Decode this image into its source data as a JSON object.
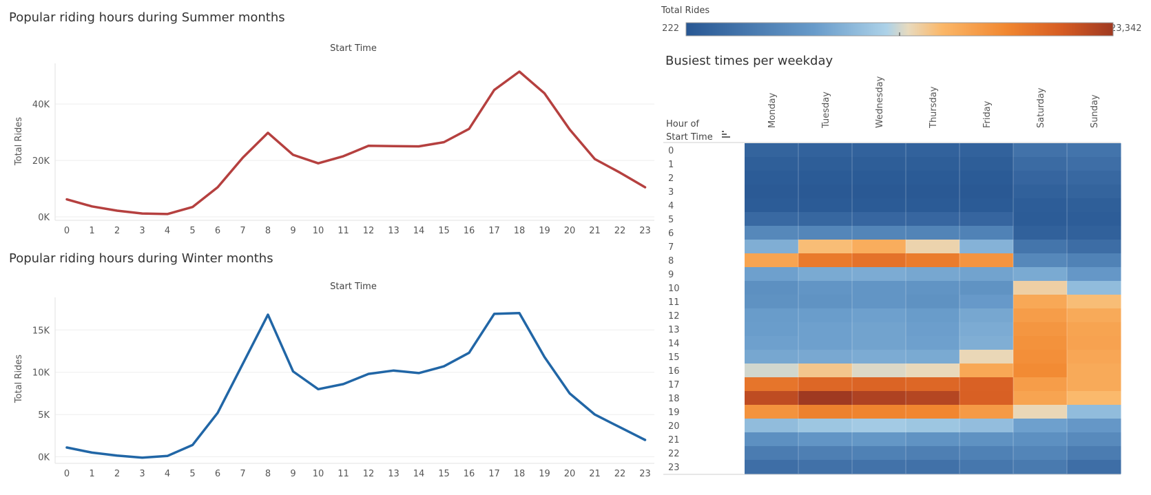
{
  "summer": {
    "title": "Popular riding hours during Summer months",
    "axis_title": "Start Time",
    "ylabel": "Total Rides",
    "yticks": [
      {
        "v": 0,
        "label": "0K"
      },
      {
        "v": 20000,
        "label": "20K"
      },
      {
        "v": 40000,
        "label": "40K"
      }
    ],
    "color": "#b5403f"
  },
  "winter": {
    "title": "Popular riding hours during Winter months",
    "axis_title": "Start Time",
    "ylabel": "Total Rides",
    "yticks": [
      {
        "v": 0,
        "label": "0K"
      },
      {
        "v": 5000,
        "label": "5K"
      },
      {
        "v": 10000,
        "label": "10K"
      },
      {
        "v": 15000,
        "label": "15K"
      }
    ],
    "color": "#2166a6"
  },
  "legend": {
    "title": "Total Rides",
    "min_label": "222",
    "max_label": "23,342"
  },
  "heatmap": {
    "title": "Busiest times per weekday",
    "row_header_line1": "Hour of",
    "row_header_line2": "Start Time"
  },
  "chart_data": [
    {
      "type": "line",
      "title": "Popular riding hours during Summer months",
      "xlabel": "Start Time",
      "ylabel": "Total Rides",
      "x": [
        0,
        1,
        2,
        3,
        4,
        5,
        6,
        7,
        8,
        9,
        10,
        11,
        12,
        13,
        14,
        15,
        16,
        17,
        18,
        19,
        20,
        21,
        22,
        23
      ],
      "values": [
        6200,
        3700,
        2200,
        1200,
        1000,
        3500,
        10500,
        21000,
        29800,
        22000,
        19000,
        21500,
        25200,
        25100,
        25000,
        26500,
        31200,
        45000,
        51500,
        43800,
        31000,
        20500,
        15700,
        10500
      ],
      "ylim": [
        0,
        52000
      ],
      "grid": true
    },
    {
      "type": "line",
      "title": "Popular riding hours during Winter months",
      "xlabel": "Start Time",
      "ylabel": "Total Rides",
      "x": [
        0,
        1,
        2,
        3,
        4,
        5,
        6,
        7,
        8,
        9,
        10,
        11,
        12,
        13,
        14,
        15,
        16,
        17,
        18,
        19,
        20,
        21,
        22,
        23
      ],
      "values": [
        1100,
        500,
        150,
        -100,
        100,
        1400,
        5200,
        11000,
        16800,
        10100,
        8000,
        8600,
        9800,
        10200,
        9900,
        10700,
        12300,
        16900,
        17000,
        11800,
        7500,
        5000,
        3500,
        2000
      ],
      "ylim": [
        -500,
        18000
      ],
      "grid": true
    },
    {
      "type": "heatmap",
      "title": "Busiest times per weekday",
      "columns": [
        "Monday",
        "Tuesday",
        "Wednesday",
        "Thursday",
        "Friday",
        "Saturday",
        "Sunday"
      ],
      "rows": [
        "0",
        "1",
        "2",
        "3",
        "4",
        "5",
        "6",
        "7",
        "8",
        "9",
        "10",
        "11",
        "12",
        "13",
        "14",
        "15",
        "16",
        "17",
        "18",
        "19",
        "20",
        "21",
        "22",
        "23"
      ],
      "color_scale": {
        "min": 222,
        "max": 23342,
        "mid": 11782,
        "label": "Total Rides"
      },
      "values": [
        [
          1500,
          1300,
          1300,
          1300,
          1300,
          3000,
          3200
        ],
        [
          1000,
          900,
          900,
          900,
          900,
          2300,
          2600
        ],
        [
          700,
          600,
          600,
          600,
          600,
          1700,
          2000
        ],
        [
          500,
          400,
          400,
          400,
          400,
          1200,
          1500
        ],
        [
          700,
          600,
          600,
          600,
          600,
          800,
          1000
        ],
        [
          2100,
          1900,
          1800,
          1800,
          1700,
          700,
          800
        ],
        [
          5200,
          5000,
          4900,
          4800,
          4600,
          1200,
          1200
        ],
        [
          8500,
          13800,
          14800,
          12600,
          8800,
          3300,
          2500
        ],
        [
          15500,
          18500,
          19000,
          18300,
          16600,
          5200,
          4600
        ],
        [
          7500,
          8200,
          8300,
          8000,
          7700,
          8200,
          6800
        ],
        [
          6000,
          6500,
          6500,
          6400,
          6300,
          12800,
          9500
        ],
        [
          6200,
          6300,
          6500,
          6200,
          7000,
          15200,
          13800
        ],
        [
          7200,
          7300,
          7500,
          7200,
          8000,
          16000,
          15000
        ],
        [
          7300,
          7500,
          7700,
          7400,
          8300,
          16500,
          15500
        ],
        [
          7500,
          7500,
          7700,
          7500,
          8500,
          16800,
          15600
        ],
        [
          8000,
          8100,
          8300,
          8200,
          12400,
          17000,
          15300
        ],
        [
          11800,
          13300,
          12000,
          12300,
          15200,
          17300,
          15000
        ],
        [
          18800,
          19800,
          20000,
          19800,
          20200,
          16000,
          15000
        ],
        [
          21800,
          23342,
          22600,
          22300,
          20300,
          15500,
          14000
        ],
        [
          16700,
          18000,
          17800,
          17600,
          16200,
          12400,
          9500
        ],
        [
          9500,
          10200,
          10500,
          10200,
          9600,
          7500,
          6800
        ],
        [
          6000,
          6500,
          6700,
          6300,
          6200,
          6000,
          5400
        ],
        [
          4000,
          4300,
          4500,
          4300,
          4500,
          4900,
          4000
        ],
        [
          2600,
          2900,
          3000,
          2900,
          3500,
          3800,
          2600
        ]
      ]
    }
  ]
}
